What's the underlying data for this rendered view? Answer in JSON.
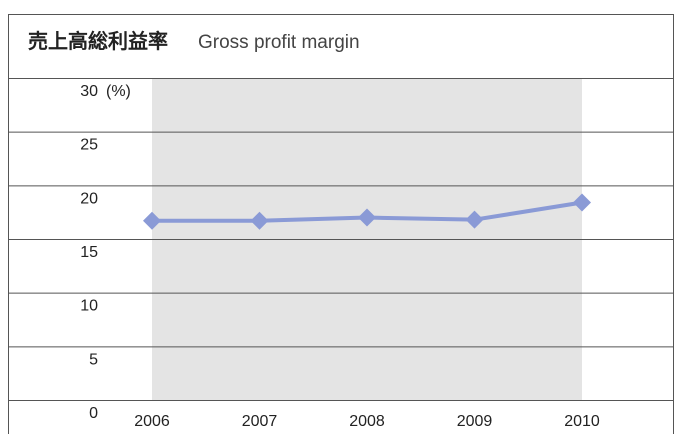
{
  "chart_data": {
    "type": "line",
    "title": "売上高総利益率",
    "subtitle": "Gross profit margin",
    "y_unit": "(%)",
    "categories": [
      "2006",
      "2007",
      "2008",
      "2009",
      "2010"
    ],
    "series": [
      {
        "name": "Gross profit margin",
        "color": "#8a9ad6",
        "values": [
          16.7,
          16.7,
          17.0,
          16.8,
          18.4
        ]
      }
    ],
    "ylim": [
      0,
      30
    ],
    "yticks": [
      0,
      5,
      10,
      15,
      20,
      25,
      30
    ],
    "grid": true
  }
}
